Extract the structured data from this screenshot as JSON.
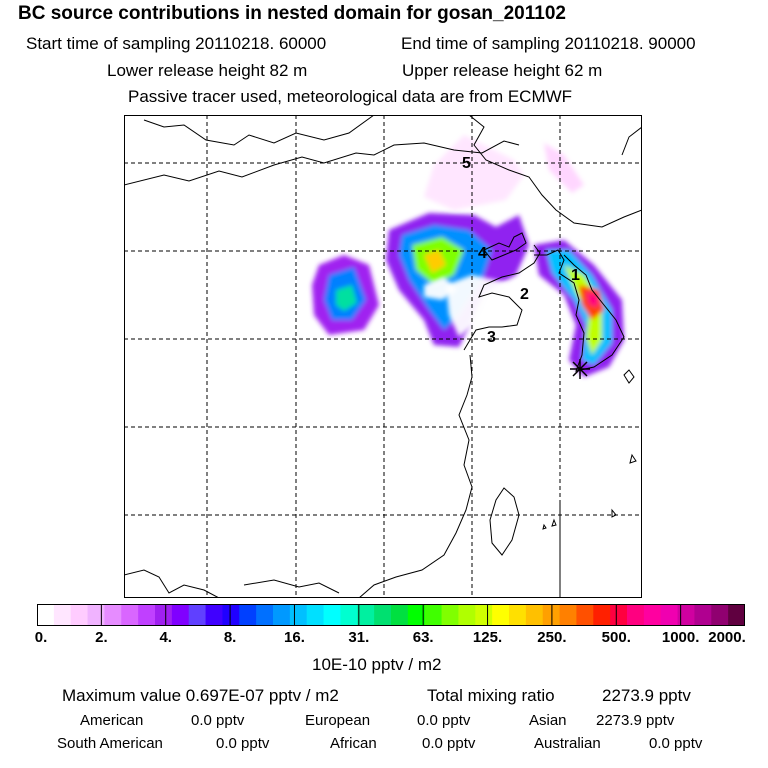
{
  "header": {
    "title": "BC  source contributions in nested domain for gosan_201102",
    "start_time": "Start time of sampling 20110218. 60000",
    "end_time": "End time of sampling 20110218. 90000",
    "lower_release": "Lower release height   82 m",
    "upper_release": "Upper release height   62 m",
    "tracer_note": "Passive tracer used, meteorological data are from ECMWF"
  },
  "map": {
    "markers": [
      {
        "label": "1"
      },
      {
        "label": "2"
      },
      {
        "label": "3"
      },
      {
        "label": "4"
      },
      {
        "label": "5"
      }
    ],
    "receptor_symbol": "star"
  },
  "colorbar": {
    "ticks": [
      "0.",
      "2.",
      "4.",
      "8.",
      "16.",
      "31.",
      "63.",
      "125.",
      "250.",
      "500.",
      "1000.",
      "2000."
    ],
    "colors": [
      "#ffffff",
      "#ffe6ff",
      "#ffccff",
      "#f0b3ff",
      "#e68cff",
      "#d966ff",
      "#c040ff",
      "#a020f0",
      "#8000ff",
      "#6040ff",
      "#4000ff",
      "#2000ff",
      "#0040ff",
      "#0070ff",
      "#0099ff",
      "#00c0ff",
      "#00e0ff",
      "#00ffff",
      "#00ffd0",
      "#00f0a0",
      "#00e070",
      "#00e040",
      "#00ff00",
      "#40ff00",
      "#80ff00",
      "#b0ff00",
      "#d0ff00",
      "#ffff00",
      "#ffe000",
      "#ffc000",
      "#ffa000",
      "#ff8000",
      "#ff5000",
      "#ff2000",
      "#ff0040",
      "#ff0080",
      "#ff00a0",
      "#f000b0",
      "#d000a0",
      "#b00090",
      "#900070",
      "#600040"
    ],
    "units": "10E-10 pptv / m2"
  },
  "footer": {
    "max_value": "Maximum value  0.697E-07 pptv / m2",
    "total_label": "Total mixing ratio",
    "total_value": "2273.9 pptv",
    "sources": [
      {
        "name": "American",
        "value": "0.0 pptv"
      },
      {
        "name": "European",
        "value": "0.0 pptv"
      },
      {
        "name": "Asian",
        "value": "2273.9 pptv"
      },
      {
        "name": "South American",
        "value": "0.0 pptv"
      },
      {
        "name": "African",
        "value": "0.0 pptv"
      },
      {
        "name": "Australian",
        "value": "0.0 pptv"
      }
    ]
  }
}
